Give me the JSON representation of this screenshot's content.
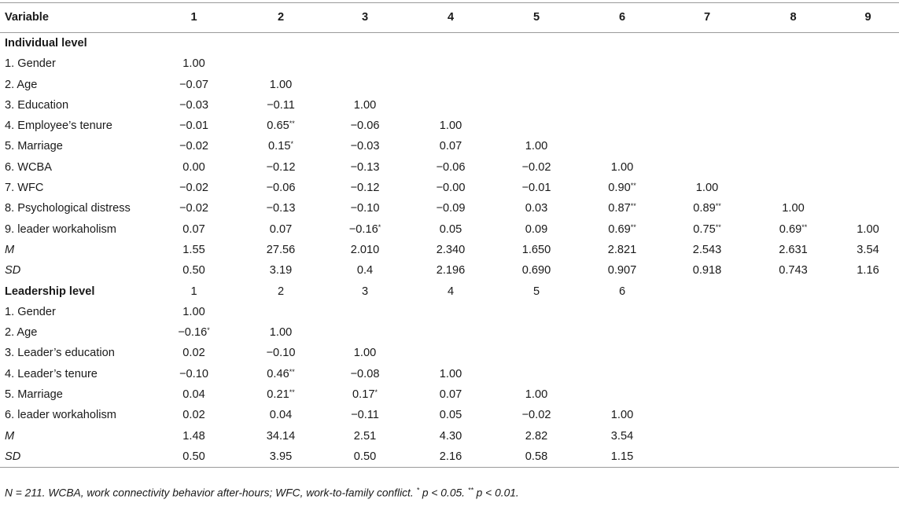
{
  "header": [
    "Variable",
    "1",
    "2",
    "3",
    "4",
    "5",
    "6",
    "7",
    "8",
    "9"
  ],
  "sections": [
    {
      "title": "Individual level",
      "title_cells": [],
      "rows": [
        {
          "label": "1. Gender",
          "italic": false,
          "cells": [
            "1.00"
          ]
        },
        {
          "label": "2. Age",
          "italic": false,
          "cells": [
            "−0.07",
            "1.00"
          ]
        },
        {
          "label": "3. Education",
          "italic": false,
          "cells": [
            "−0.03",
            "−0.11",
            "1.00"
          ]
        },
        {
          "label": "4. Employee’s tenure",
          "italic": false,
          "cells": [
            "−0.01",
            "0.65**",
            "−0.06",
            "1.00"
          ]
        },
        {
          "label": "5. Marriage",
          "italic": false,
          "cells": [
            "−0.02",
            "0.15*",
            "−0.03",
            "0.07",
            "1.00"
          ]
        },
        {
          "label": "6. WCBA",
          "italic": false,
          "cells": [
            "0.00",
            "−0.12",
            "−0.13",
            "−0.06",
            "−0.02",
            "1.00"
          ]
        },
        {
          "label": "7. WFC",
          "italic": false,
          "cells": [
            "−0.02",
            "−0.06",
            "−0.12",
            "−0.00",
            "−0.01",
            "0.90**",
            "1.00"
          ]
        },
        {
          "label": "8. Psychological distress",
          "italic": false,
          "cells": [
            "−0.02",
            "−0.13",
            "−0.10",
            "−0.09",
            "0.03",
            "0.87**",
            "0.89**",
            "1.00"
          ]
        },
        {
          "label": "9. leader workaholism",
          "italic": false,
          "cells": [
            "0.07",
            "0.07",
            "−0.16*",
            "0.05",
            "0.09",
            "0.69**",
            "0.75**",
            "0.69**",
            "1.00"
          ]
        },
        {
          "label": "M",
          "italic": true,
          "cells": [
            "1.55",
            "27.56",
            "2.010",
            "2.340",
            "1.650",
            "2.821",
            "2.543",
            "2.631",
            "3.54"
          ]
        },
        {
          "label": "SD",
          "italic": true,
          "cells": [
            "0.50",
            "3.19",
            "0.4",
            "2.196",
            "0.690",
            "0.907",
            "0.918",
            "0.743",
            "1.16"
          ]
        }
      ]
    },
    {
      "title": "Leadership level",
      "title_cells": [
        "1",
        "2",
        "3",
        "4",
        "5",
        "6"
      ],
      "rows": [
        {
          "label": "1. Gender",
          "italic": false,
          "cells": [
            "1.00"
          ]
        },
        {
          "label": "2. Age",
          "italic": false,
          "cells": [
            "−0.16*",
            "1.00"
          ]
        },
        {
          "label": "3. Leader’s education",
          "italic": false,
          "cells": [
            "0.02",
            "−0.10",
            "1.00"
          ]
        },
        {
          "label": "4. Leader’s tenure",
          "italic": false,
          "cells": [
            "−0.10",
            "0.46**",
            "−0.08",
            "1.00"
          ]
        },
        {
          "label": "5. Marriage",
          "italic": false,
          "cells": [
            "0.04",
            "0.21**",
            "0.17*",
            "0.07",
            "1.00"
          ]
        },
        {
          "label": "6. leader workaholism",
          "italic": false,
          "cells": [
            "0.02",
            "0.04",
            "−0.11",
            "0.05",
            "−0.02",
            "1.00"
          ]
        },
        {
          "label": "M",
          "italic": true,
          "cells": [
            "1.48",
            "34.14",
            "2.51",
            "4.30",
            "2.82",
            "3.54"
          ]
        },
        {
          "label": "SD",
          "italic": true,
          "cells": [
            "0.50",
            "3.95",
            "0.50",
            "2.16",
            "0.58",
            "1.15"
          ]
        }
      ]
    }
  ],
  "note": {
    "main": "N = 211. WCBA, work connectivity behavior after-hours; WFC, work-to-family conflict. ",
    "p1_mark": "*",
    "p1_text": " p < 0.05. ",
    "p2_mark": "**",
    "p2_text": " p < 0.01."
  }
}
